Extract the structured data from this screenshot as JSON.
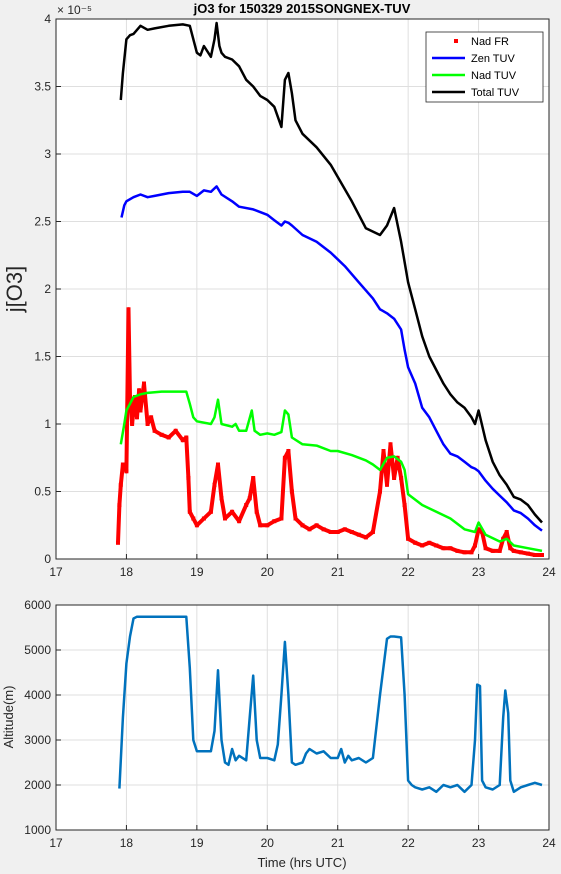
{
  "chart_data": [
    {
      "type": "line",
      "title": "jO3 for 150329 2015SONGNEX-TUV",
      "xlabel": "",
      "ylabel": "j[O3]",
      "y_exponent_label": "× 10⁻⁵",
      "xlim": [
        17,
        24
      ],
      "ylim": [
        0,
        4
      ],
      "x_ticks": [
        17,
        18,
        19,
        20,
        21,
        22,
        23,
        24
      ],
      "y_ticks": [
        0,
        0.5,
        1,
        1.5,
        2,
        2.5,
        3,
        3.5,
        4
      ],
      "y_tick_labels": [
        "0",
        "0.5",
        "1",
        "1.5",
        "2",
        "2.5",
        "3",
        "3.5",
        "4"
      ],
      "grid": true,
      "legend_position": "top-right",
      "series": [
        {
          "name": "Nad FR",
          "style": "markers",
          "color": "#ff0000",
          "x": [
            17.88,
            17.9,
            17.92,
            17.95,
            18.0,
            18.03,
            18.05,
            18.08,
            18.1,
            18.12,
            18.15,
            18.18,
            18.2,
            18.25,
            18.3,
            18.35,
            18.4,
            18.5,
            18.6,
            18.7,
            18.8,
            18.85,
            18.88,
            18.9,
            18.95,
            19.0,
            19.1,
            19.2,
            19.25,
            19.3,
            19.35,
            19.4,
            19.5,
            19.6,
            19.7,
            19.75,
            19.8,
            19.85,
            19.9,
            20.0,
            20.1,
            20.2,
            20.25,
            20.3,
            20.35,
            20.4,
            20.5,
            20.6,
            20.7,
            20.8,
            20.9,
            21.0,
            21.1,
            21.2,
            21.3,
            21.4,
            21.5,
            21.6,
            21.65,
            21.7,
            21.75,
            21.8,
            21.85,
            21.9,
            21.95,
            22.0,
            22.1,
            22.2,
            22.3,
            22.4,
            22.5,
            22.6,
            22.7,
            22.8,
            22.9,
            22.95,
            23.0,
            23.05,
            23.1,
            23.2,
            23.3,
            23.35,
            23.4,
            23.45,
            23.5,
            23.6,
            23.7,
            23.8,
            23.9
          ],
          "y": [
            0.12,
            0.4,
            0.55,
            0.7,
            0.65,
            1.85,
            1.2,
            1.0,
            1.1,
            1.2,
            1.05,
            1.25,
            1.1,
            1.3,
            1.0,
            1.05,
            0.95,
            0.92,
            0.9,
            0.95,
            0.88,
            0.9,
            0.6,
            0.35,
            0.3,
            0.25,
            0.3,
            0.35,
            0.55,
            0.7,
            0.45,
            0.3,
            0.35,
            0.28,
            0.4,
            0.45,
            0.6,
            0.35,
            0.25,
            0.25,
            0.28,
            0.3,
            0.75,
            0.8,
            0.5,
            0.3,
            0.25,
            0.22,
            0.25,
            0.22,
            0.2,
            0.2,
            0.22,
            0.2,
            0.18,
            0.16,
            0.2,
            0.5,
            0.8,
            0.55,
            0.85,
            0.6,
            0.75,
            0.6,
            0.4,
            0.15,
            0.12,
            0.1,
            0.12,
            0.1,
            0.08,
            0.08,
            0.06,
            0.05,
            0.05,
            0.1,
            0.22,
            0.2,
            0.08,
            0.06,
            0.06,
            0.15,
            0.2,
            0.08,
            0.06,
            0.05,
            0.04,
            0.03,
            0.03
          ]
        },
        {
          "name": "Zen TUV",
          "style": "line",
          "color": "#0000ff",
          "x": [
            17.93,
            17.97,
            18.0,
            18.1,
            18.2,
            18.3,
            18.4,
            18.6,
            18.8,
            18.9,
            19.0,
            19.1,
            19.2,
            19.28,
            19.35,
            19.5,
            19.6,
            19.8,
            19.9,
            20.0,
            20.1,
            20.2,
            20.25,
            20.3,
            20.35,
            20.5,
            20.7,
            20.9,
            21.0,
            21.1,
            21.3,
            21.5,
            21.6,
            21.7,
            21.8,
            21.9,
            21.95,
            22.0,
            22.1,
            22.2,
            22.3,
            22.4,
            22.5,
            22.6,
            22.7,
            22.8,
            22.9,
            22.95,
            23.0,
            23.1,
            23.2,
            23.3,
            23.4,
            23.5,
            23.6,
            23.7,
            23.8,
            23.9
          ],
          "y": [
            2.53,
            2.62,
            2.65,
            2.68,
            2.7,
            2.68,
            2.69,
            2.71,
            2.72,
            2.72,
            2.69,
            2.73,
            2.72,
            2.76,
            2.7,
            2.65,
            2.61,
            2.59,
            2.57,
            2.55,
            2.51,
            2.47,
            2.5,
            2.49,
            2.47,
            2.4,
            2.35,
            2.27,
            2.22,
            2.17,
            2.05,
            1.93,
            1.85,
            1.82,
            1.78,
            1.7,
            1.55,
            1.42,
            1.3,
            1.12,
            1.05,
            0.95,
            0.85,
            0.78,
            0.76,
            0.72,
            0.68,
            0.67,
            0.65,
            0.58,
            0.52,
            0.47,
            0.42,
            0.36,
            0.34,
            0.3,
            0.25,
            0.21
          ]
        },
        {
          "name": "Nad TUV",
          "style": "line",
          "color": "#00ff00",
          "x": [
            17.92,
            17.97,
            18.0,
            18.05,
            18.1,
            18.2,
            18.3,
            18.5,
            18.7,
            18.85,
            18.9,
            18.95,
            19.0,
            19.2,
            19.25,
            19.3,
            19.35,
            19.5,
            19.55,
            19.6,
            19.7,
            19.78,
            19.82,
            19.9,
            20.0,
            20.1,
            20.2,
            20.25,
            20.3,
            20.35,
            20.5,
            20.7,
            20.9,
            21.0,
            21.2,
            21.4,
            21.5,
            21.6,
            21.7,
            21.8,
            21.9,
            21.95,
            22.0,
            22.2,
            22.4,
            22.6,
            22.8,
            22.95,
            23.0,
            23.1,
            23.3,
            23.4,
            23.5,
            23.7,
            23.9
          ],
          "y": [
            0.85,
            1.0,
            1.1,
            1.15,
            1.2,
            1.22,
            1.23,
            1.24,
            1.24,
            1.24,
            1.15,
            1.05,
            1.02,
            1.0,
            1.05,
            1.18,
            1.0,
            0.98,
            1.0,
            0.95,
            0.95,
            1.1,
            0.95,
            0.92,
            0.93,
            0.92,
            0.94,
            1.1,
            1.07,
            0.9,
            0.85,
            0.84,
            0.8,
            0.8,
            0.77,
            0.73,
            0.7,
            0.66,
            0.75,
            0.76,
            0.72,
            0.66,
            0.48,
            0.4,
            0.35,
            0.3,
            0.22,
            0.2,
            0.27,
            0.18,
            0.13,
            0.15,
            0.1,
            0.08,
            0.06
          ]
        },
        {
          "name": "Total TUV",
          "style": "line",
          "color": "#000000",
          "x": [
            17.92,
            17.95,
            18.0,
            18.05,
            18.1,
            18.2,
            18.3,
            18.4,
            18.6,
            18.8,
            18.9,
            19.0,
            19.05,
            19.1,
            19.2,
            19.25,
            19.28,
            19.32,
            19.35,
            19.4,
            19.5,
            19.6,
            19.7,
            19.8,
            19.9,
            20.0,
            20.1,
            20.2,
            20.25,
            20.3,
            20.35,
            20.4,
            20.5,
            20.7,
            20.9,
            21.0,
            21.2,
            21.4,
            21.6,
            21.7,
            21.8,
            21.9,
            21.95,
            22.0,
            22.1,
            22.2,
            22.3,
            22.4,
            22.5,
            22.6,
            22.7,
            22.8,
            22.9,
            22.95,
            23.0,
            23.1,
            23.2,
            23.3,
            23.4,
            23.5,
            23.6,
            23.7,
            23.8,
            23.9
          ],
          "y": [
            3.4,
            3.6,
            3.85,
            3.88,
            3.89,
            3.95,
            3.92,
            3.93,
            3.95,
            3.96,
            3.95,
            3.75,
            3.73,
            3.8,
            3.72,
            3.85,
            3.97,
            3.8,
            3.75,
            3.72,
            3.7,
            3.65,
            3.55,
            3.5,
            3.43,
            3.4,
            3.35,
            3.2,
            3.55,
            3.6,
            3.45,
            3.25,
            3.15,
            3.05,
            2.92,
            2.83,
            2.65,
            2.45,
            2.4,
            2.47,
            2.6,
            2.35,
            2.2,
            2.05,
            1.85,
            1.65,
            1.5,
            1.4,
            1.3,
            1.22,
            1.16,
            1.12,
            1.05,
            1.0,
            1.1,
            0.88,
            0.72,
            0.62,
            0.55,
            0.46,
            0.44,
            0.4,
            0.33,
            0.27
          ]
        }
      ]
    },
    {
      "type": "line",
      "title": "",
      "xlabel": "Time (hrs UTC)",
      "ylabel": "Altitude(m)",
      "xlim": [
        17,
        24
      ],
      "ylim": [
        1000,
        6000
      ],
      "x_ticks": [
        17,
        18,
        19,
        20,
        21,
        22,
        23,
        24
      ],
      "y_ticks": [
        1000,
        2000,
        3000,
        4000,
        5000,
        6000
      ],
      "grid": true,
      "series": [
        {
          "style": "line",
          "color": "#0072bd",
          "x": [
            17.9,
            17.95,
            18.0,
            18.05,
            18.1,
            18.15,
            18.3,
            18.5,
            18.7,
            18.85,
            18.9,
            18.95,
            19.0,
            19.2,
            19.25,
            19.3,
            19.35,
            19.4,
            19.45,
            19.5,
            19.55,
            19.6,
            19.7,
            19.75,
            19.8,
            19.85,
            19.9,
            20.0,
            20.1,
            20.15,
            20.2,
            20.25,
            20.3,
            20.35,
            20.4,
            20.5,
            20.55,
            20.6,
            20.7,
            20.8,
            20.9,
            21.0,
            21.05,
            21.1,
            21.15,
            21.2,
            21.3,
            21.4,
            21.5,
            21.6,
            21.7,
            21.75,
            21.8,
            21.9,
            21.95,
            22.0,
            22.05,
            22.1,
            22.2,
            22.3,
            22.4,
            22.5,
            22.6,
            22.7,
            22.8,
            22.9,
            22.95,
            22.98,
            23.02,
            23.05,
            23.1,
            23.2,
            23.3,
            23.35,
            23.38,
            23.42,
            23.45,
            23.5,
            23.6,
            23.7,
            23.8,
            23.9
          ],
          "y": [
            1920,
            3500,
            4700,
            5300,
            5700,
            5740,
            5740,
            5740,
            5740,
            5740,
            4600,
            3000,
            2750,
            2750,
            3200,
            4550,
            3000,
            2500,
            2450,
            2800,
            2550,
            2650,
            2550,
            3500,
            4430,
            3000,
            2600,
            2600,
            2550,
            2900,
            4000,
            5180,
            4000,
            2500,
            2450,
            2500,
            2700,
            2800,
            2700,
            2750,
            2600,
            2600,
            2800,
            2500,
            2650,
            2550,
            2600,
            2500,
            2600,
            4000,
            5250,
            5300,
            5300,
            5280,
            4000,
            2100,
            2000,
            1950,
            1900,
            1950,
            1850,
            2000,
            1950,
            2000,
            1850,
            2000,
            3000,
            4230,
            4200,
            2100,
            1950,
            1900,
            2000,
            3500,
            4100,
            3600,
            2100,
            1850,
            1950,
            2000,
            2050,
            2000
          ]
        }
      ]
    }
  ]
}
